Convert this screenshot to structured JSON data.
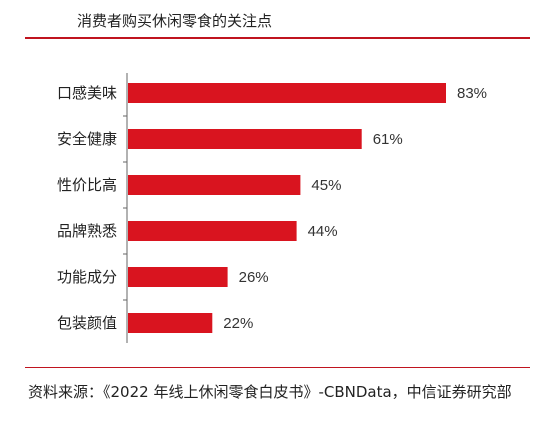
{
  "chart_data": {
    "type": "bar",
    "orientation": "horizontal",
    "title": "消费者购买休闲零食的关注点",
    "categories": [
      "口感美味",
      "安全健康",
      "性价比高",
      "品牌熟悉",
      "功能成分",
      "包装颜值"
    ],
    "values": [
      83,
      61,
      45,
      44,
      26,
      22
    ],
    "data_labels": [
      "83%",
      "61%",
      "45%",
      "44%",
      "26%",
      "22%"
    ],
    "xlabel": "",
    "ylabel": "",
    "unit": "%",
    "xlim": [
      0,
      83
    ],
    "grid": false,
    "bar_color": "#d9141f"
  },
  "source_text": "资料来源：《2022 年线上休闲零食白皮书》-CBNData，中信证券研究部",
  "colors": {
    "accent": "#c0141f",
    "bar": "#d9141f"
  }
}
